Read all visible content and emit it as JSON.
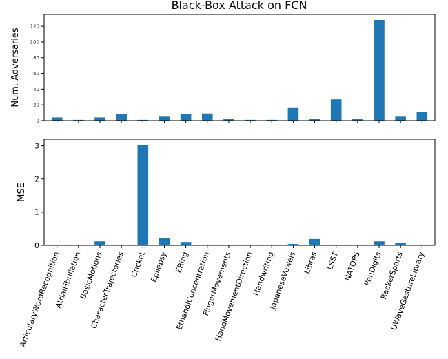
{
  "chart_data": [
    {
      "type": "bar",
      "title": "Black-Box Attack on FCN",
      "ylabel": "Num. Adversaries",
      "ylim": [
        0,
        135
      ],
      "yticks": [
        0,
        20,
        40,
        60,
        80,
        100,
        120
      ],
      "color": "#1f77b4",
      "categories": [
        "ArticularyWordRecognition",
        "AtrialFibrillation",
        "BasicMotions",
        "CharacterTrajectories",
        "Cricket",
        "Epilepsy",
        "ERing",
        "EthanolConcentration",
        "FingerMovements",
        "HandMovementDirection",
        "Handwriting",
        "JapaneseVowels",
        "Libras",
        "LSST",
        "NATOPS",
        "PenDigits",
        "RacketSports",
        "UWaveGestureLibrary"
      ],
      "values": [
        4,
        1,
        4,
        8,
        1,
        5,
        8,
        9,
        2,
        1,
        1,
        16,
        2,
        27,
        2,
        128,
        5,
        11
      ]
    },
    {
      "type": "bar",
      "ylabel": "MSE",
      "ylim": [
        0,
        3.2
      ],
      "yticks": [
        0,
        1,
        2,
        3
      ],
      "color": "#1f77b4",
      "categories": [
        "ArticularyWordRecognition",
        "AtrialFibrillation",
        "BasicMotions",
        "CharacterTrajectories",
        "Cricket",
        "Epilepsy",
        "ERing",
        "EthanolConcentration",
        "FingerMovements",
        "HandMovementDirection",
        "Handwriting",
        "JapaneseVowels",
        "Libras",
        "LSST",
        "NATOPS",
        "PenDigits",
        "RacketSports",
        "UWaveGestureLibrary"
      ],
      "values": [
        0.0,
        0.02,
        0.12,
        0.0,
        3.03,
        0.21,
        0.1,
        0.02,
        0.0,
        0.02,
        0.0,
        0.04,
        0.19,
        0.0,
        0.0,
        0.12,
        0.08,
        0.02
      ]
    }
  ]
}
